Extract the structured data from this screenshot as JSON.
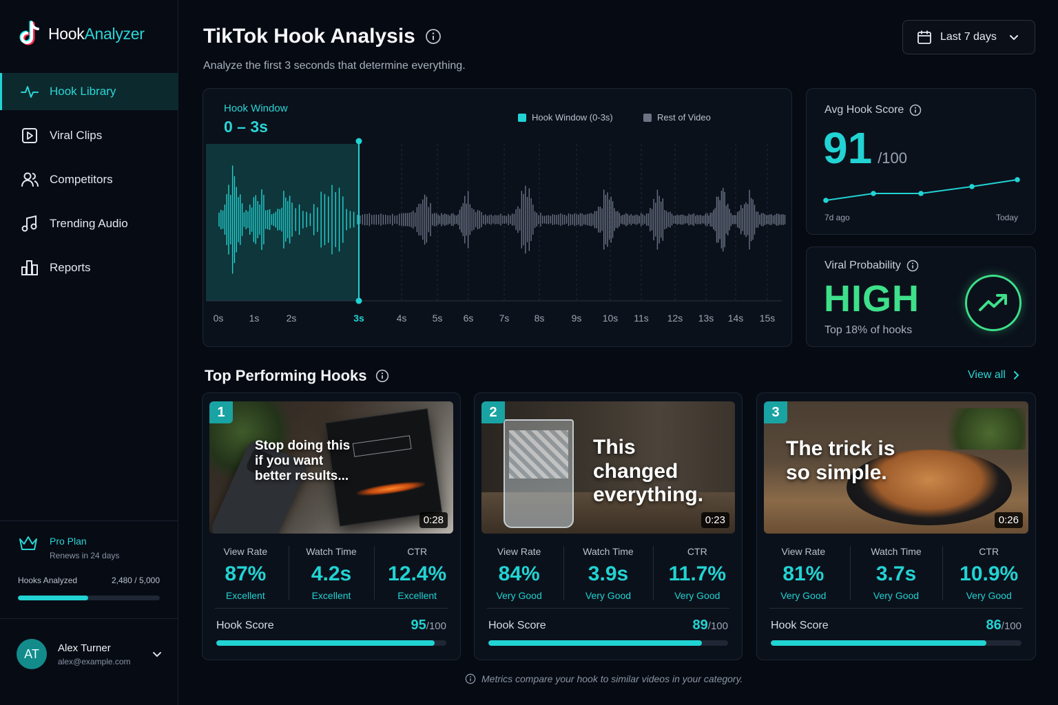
{
  "app": {
    "name_part1": "Hook",
    "name_part2": "Analyzer",
    "logo_icon": "tiktok-note-icon"
  },
  "sidebar": {
    "items": [
      {
        "label": "Hook Library",
        "icon": "pulse-icon",
        "active": true
      },
      {
        "label": "Viral Clips",
        "icon": "play-square-icon",
        "active": false
      },
      {
        "label": "Competitors",
        "icon": "users-icon",
        "active": false
      },
      {
        "label": "Trending Audio",
        "icon": "music-note-icon",
        "active": false
      },
      {
        "label": "Reports",
        "icon": "bar-chart-icon",
        "active": false
      }
    ],
    "plan": {
      "title": "Pro Plan",
      "renews": "Renews in 24 days",
      "icon": "crown-icon"
    },
    "usage": {
      "label": "Hooks Analyzed",
      "text": "2,480 / 5,000",
      "used": 2480,
      "total": 5000
    },
    "user": {
      "initials": "AT",
      "name": "Alex Turner",
      "email": "alex@example.com"
    }
  },
  "header": {
    "title": "TikTok Hook Analysis",
    "subtitle": "Analyze the first 3 seconds that determine everything.",
    "date_range": "Last 7 days"
  },
  "chart_data": [
    {
      "type": "area",
      "title": "Hook Window",
      "subtitle": "0 – 3s",
      "legend": [
        "Hook Window (0-3s)",
        "Rest of Video"
      ],
      "legend_position": "top-right",
      "x_ticks": [
        "0s",
        "1s",
        "2s",
        "3s",
        "4s",
        "5s",
        "6s",
        "7s",
        "8s",
        "9s",
        "10s",
        "11s",
        "12s",
        "13s",
        "14s",
        "15s"
      ],
      "xlim": [
        0,
        15.5
      ],
      "highlight_range": [
        0,
        3
      ],
      "grid": true,
      "colors": {
        "hook": "#22d3d3",
        "rest": "#6b7385"
      }
    },
    {
      "type": "line",
      "title": "Avg Hook Score",
      "x_labels": [
        "7d ago",
        "Today"
      ],
      "values": [
        88,
        89,
        89,
        90,
        91
      ],
      "ylim": [
        86,
        93
      ]
    }
  ],
  "avg_score": {
    "label": "Avg Hook Score",
    "value": "91",
    "denominator": "/100"
  },
  "viral": {
    "label": "Viral Probability",
    "value": "HIGH",
    "sub": "Top 18% of hooks"
  },
  "top_hooks": {
    "title": "Top Performing Hooks",
    "view_all": "View all",
    "cards": [
      {
        "rank": "1",
        "overlay": "Stop doing this if you want better results...",
        "duration": "0:28",
        "metrics": [
          {
            "label": "View Rate",
            "value": "87%",
            "rating": "Excellent"
          },
          {
            "label": "Watch Time",
            "value": "4.2s",
            "rating": "Excellent"
          },
          {
            "label": "CTR",
            "value": "12.4%",
            "rating": "Excellent"
          }
        ],
        "score_label": "Hook Score",
        "score": 95,
        "score_max": "/100"
      },
      {
        "rank": "2",
        "overlay": "This changed everything.",
        "duration": "0:23",
        "metrics": [
          {
            "label": "View Rate",
            "value": "84%",
            "rating": "Very Good"
          },
          {
            "label": "Watch Time",
            "value": "3.9s",
            "rating": "Very Good"
          },
          {
            "label": "CTR",
            "value": "11.7%",
            "rating": "Very Good"
          }
        ],
        "score_label": "Hook Score",
        "score": 89,
        "score_max": "/100"
      },
      {
        "rank": "3",
        "overlay": "The trick is so simple.",
        "duration": "0:26",
        "metrics": [
          {
            "label": "View Rate",
            "value": "81%",
            "rating": "Very Good"
          },
          {
            "label": "Watch Time",
            "value": "3.7s",
            "rating": "Very Good"
          },
          {
            "label": "CTR",
            "value": "10.9%",
            "rating": "Very Good"
          }
        ],
        "score_label": "Hook Score",
        "score": 86,
        "score_max": "/100"
      }
    ]
  },
  "footnote": "Metrics compare your hook to similar videos in your category."
}
